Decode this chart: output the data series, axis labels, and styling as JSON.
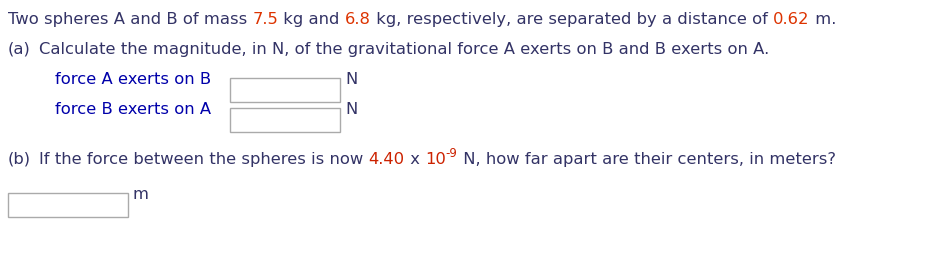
{
  "bg_color": "#ffffff",
  "dark_color": "#333366",
  "red_color": "#cc2200",
  "blue_color": "#0000aa",
  "line1_parts": [
    {
      "text": "Two spheres A and B of mass ",
      "color": "#333366"
    },
    {
      "text": "7.5",
      "color": "#dd3300"
    },
    {
      "text": " kg and ",
      "color": "#333366"
    },
    {
      "text": "6.8",
      "color": "#dd3300"
    },
    {
      "text": " kg, respectively, are separated by a distance of ",
      "color": "#333366"
    },
    {
      "text": "0.62",
      "color": "#dd3300"
    },
    {
      "text": " m.",
      "color": "#333366"
    }
  ],
  "part_a_label": "(a)",
  "part_a_text": "Calculate the magnitude, in N, of the gravitational force A exerts on B and B exerts on A.",
  "row1_label": "force A exerts on B",
  "row1_unit": "N",
  "row2_label": "force B exerts on A",
  "row2_unit": "N",
  "part_b_label": "(b)",
  "part_b_pre": "If the force between the spheres is now ",
  "part_b_440": "4.40",
  "part_b_x": " x ",
  "part_b_10": "10",
  "part_b_exp": "-9",
  "part_b_post": " N, how far apart are their centers, in meters?",
  "part_b_unit": "m",
  "font_size": 11.8,
  "box_color": "#aaaaaa"
}
